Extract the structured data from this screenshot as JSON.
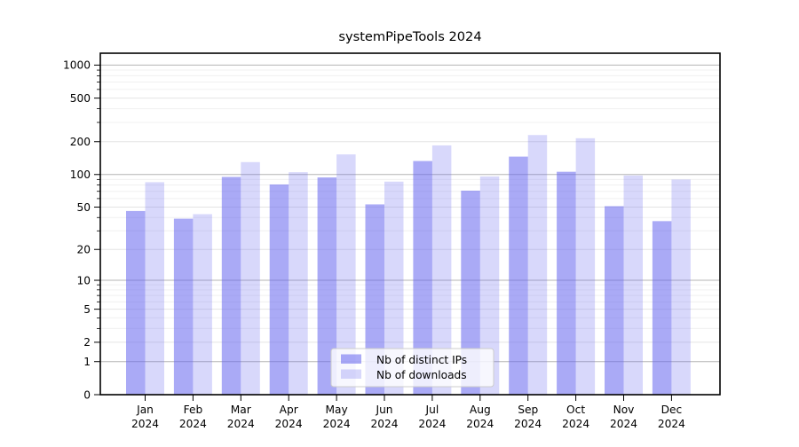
{
  "title": "systemPipeTools 2024",
  "colors": {
    "bar_base": "#6565ee",
    "ips_effective": "#a9a9f5",
    "downloads_effective": "#d9d9f9",
    "grid_major": "#b4b4b4",
    "grid_mid": "#e4e4e4",
    "grid_minor": "#f0f0f0",
    "frame": "#000000",
    "legend_border": "#cccccc",
    "background": "#ffffff"
  },
  "chart_data": {
    "type": "bar",
    "title": "systemPipeTools 2024",
    "xlabel": "",
    "ylabel": "",
    "categories": [
      "Jan 2024",
      "Feb 2024",
      "Mar 2024",
      "Apr 2024",
      "May 2024",
      "Jun 2024",
      "Jul 2024",
      "Aug 2024",
      "Sep 2024",
      "Oct 2024",
      "Nov 2024",
      "Dec 2024"
    ],
    "series": [
      {
        "name": "Nb of distinct IPs",
        "color": "#6565ee",
        "opacity": 0.55,
        "values": [
          46,
          39,
          95,
          81,
          94,
          53,
          133,
          71,
          146,
          106,
          51,
          37
        ]
      },
      {
        "name": "Nb of downloads",
        "color": "#6565ee",
        "opacity": 0.25,
        "values": [
          85,
          43,
          130,
          105,
          153,
          86,
          185,
          96,
          230,
          215,
          98,
          90
        ]
      }
    ],
    "y_scale": "log10(1+v)",
    "y_ticks": [
      0,
      1,
      2,
      5,
      10,
      20,
      50,
      100,
      200,
      500,
      1000
    ],
    "y_ticks_major": [
      1,
      10,
      100,
      1000
    ],
    "y_ticks_labeled_minor": [
      2,
      5,
      20,
      50,
      200,
      500
    ],
    "ylim": [
      0,
      1290
    ],
    "grid": "horizontal, major and minor",
    "legend_position": "lower center inside plot"
  }
}
